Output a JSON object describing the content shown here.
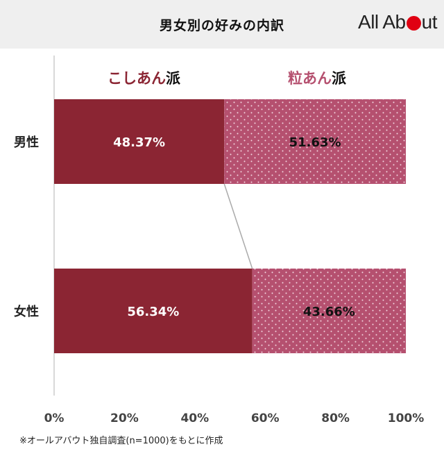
{
  "header": {
    "title": "男女別の好みの内訳",
    "logo": {
      "part1": "All Ab",
      "part2": "ut"
    }
  },
  "legend": {
    "koshian": {
      "colored": "こしあん",
      "suffix": "派",
      "color": "#8b2533"
    },
    "tsubuan": {
      "colored": "粒あん",
      "suffix": "派",
      "color": "#b5506f"
    }
  },
  "footnote": "※オールアバウト独自調査(n=1000)をもとに作成",
  "colors": {
    "koshian": "#8b2533",
    "tsubuan": "#b5506f",
    "axis": "#cccccc",
    "connector": "#aaaaaa"
  },
  "chart_data": {
    "type": "bar",
    "orientation": "horizontal",
    "stacked": true,
    "percent": true,
    "title": "男女別の好みの内訳",
    "categories": [
      "男性",
      "女性"
    ],
    "series": [
      {
        "name": "こしあん派",
        "values": [
          48.37,
          56.34
        ],
        "labels": [
          "48.37%",
          "56.34%"
        ],
        "label_color": "#ffffff",
        "pattern": "solid"
      },
      {
        "name": "粒あん派",
        "values": [
          51.63,
          43.66
        ],
        "labels": [
          "51.63%",
          "43.66%"
        ],
        "label_color": "#111111",
        "pattern": "dotted"
      }
    ],
    "xlim": [
      0,
      100
    ],
    "xticks": [
      0,
      20,
      40,
      60,
      80,
      100
    ],
    "xtick_labels": [
      "0%",
      "20%",
      "40%",
      "60%",
      "80%",
      "100%"
    ],
    "grid": false,
    "legend": "top",
    "series_lines": true
  }
}
